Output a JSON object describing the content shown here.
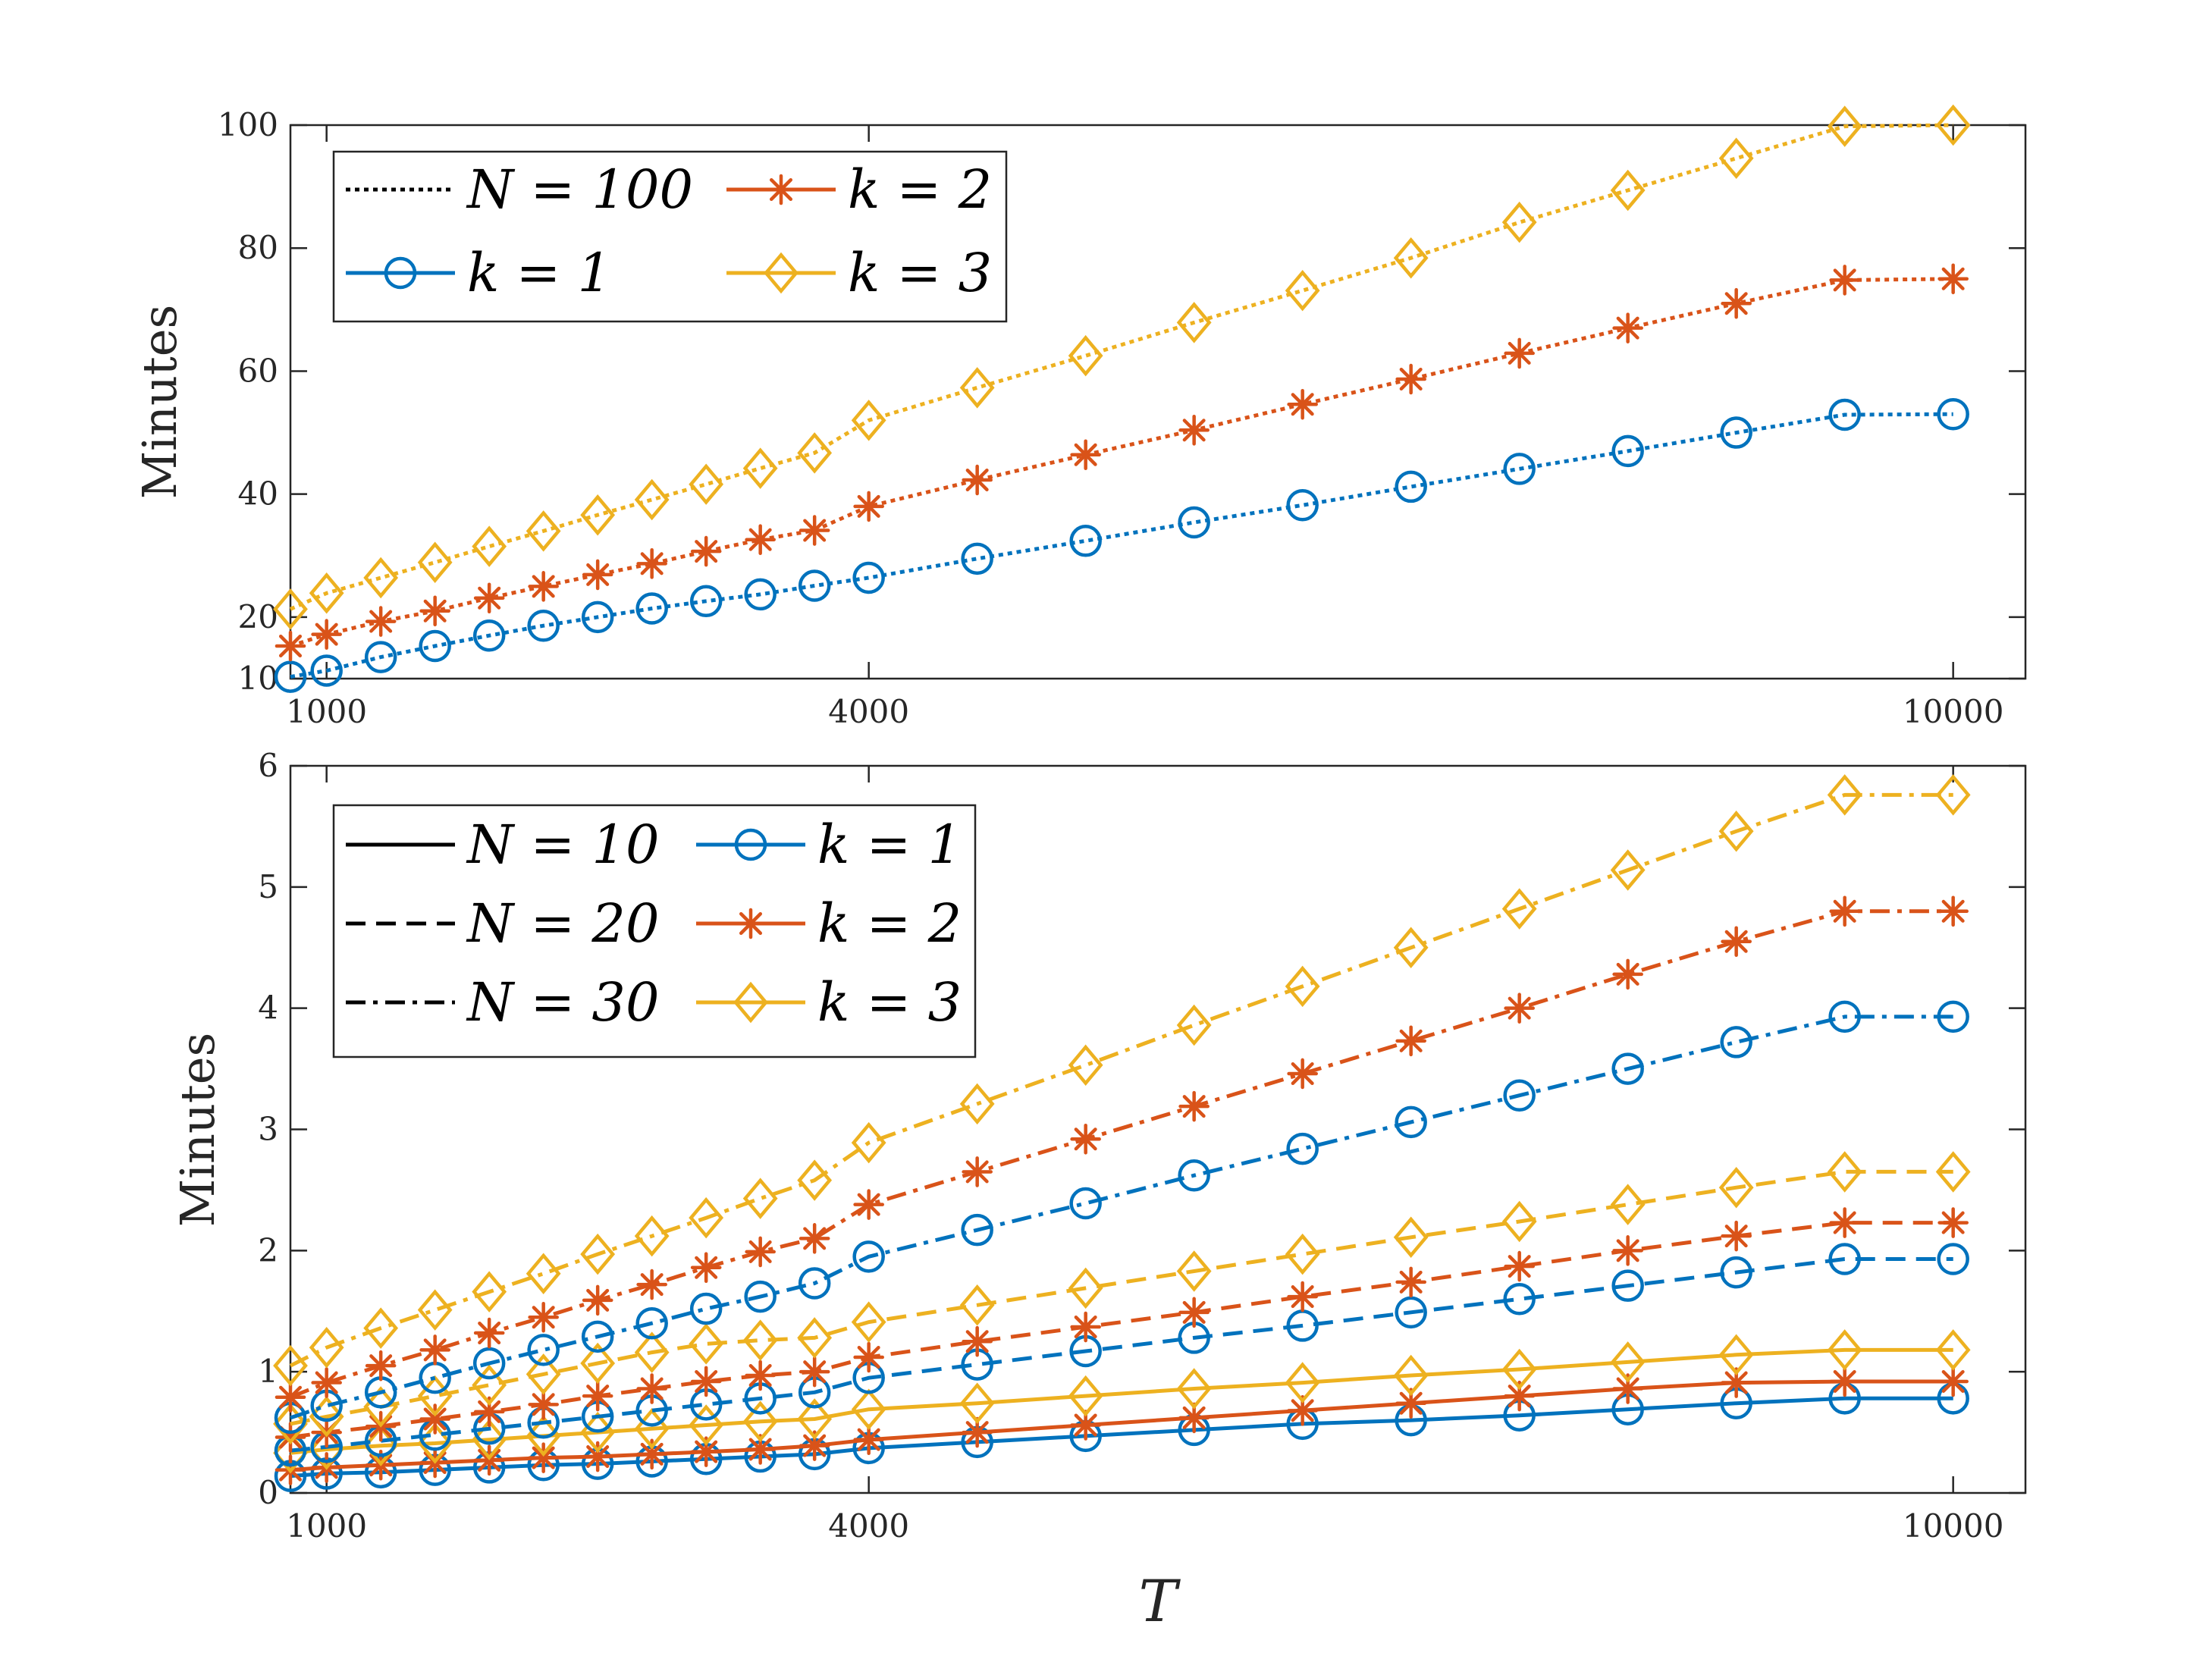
{
  "chart_data": [
    {
      "type": "line",
      "id": "top",
      "title": "",
      "xlabel": "",
      "ylabel": "Minutes",
      "xlim": [
        800,
        10400
      ],
      "ylim": [
        10,
        100
      ],
      "xticks": [
        1000,
        4000,
        10000
      ],
      "xtick_labels": [
        "1000",
        "4000",
        "10000"
      ],
      "yticks": [
        10,
        20,
        40,
        60,
        80,
        100
      ],
      "ytick_labels": [
        "10",
        "20",
        "40",
        "60",
        "80",
        "100"
      ],
      "grid": false,
      "legend_position": "top-left",
      "legend": [
        {
          "label": "N = 100",
          "kind": "style",
          "dash": "dotted",
          "color": "#000000"
        },
        {
          "label": "k = 2",
          "kind": "marker",
          "marker": "star",
          "color": "#D95319"
        },
        {
          "label": "k = 1",
          "kind": "marker",
          "marker": "circle",
          "color": "#0072BD"
        },
        {
          "label": "k = 3",
          "kind": "marker",
          "marker": "diamond",
          "color": "#EDB120"
        }
      ],
      "x": [
        800,
        1000,
        1300,
        1600,
        1900,
        2200,
        2500,
        2800,
        3100,
        3400,
        3700,
        4000,
        4600,
        5200,
        5800,
        6400,
        7000,
        7600,
        8200,
        8800,
        9400,
        10000
      ],
      "series": [
        {
          "name": "N=100, k=1",
          "N": 100,
          "k": 1,
          "color": "#0072BD",
          "marker": "circle",
          "dash": "dotted",
          "values": [
            10.3,
            11.3,
            13.5,
            15.3,
            17.0,
            18.6,
            20.0,
            21.4,
            22.6,
            23.7,
            25.1,
            26.4,
            29.5,
            32.4,
            35.4,
            38.2,
            41.2,
            44.1,
            47.0,
            50.0,
            52.9,
            53.0
          ]
        },
        {
          "name": "N=100, k=2",
          "N": 100,
          "k": 2,
          "color": "#D95319",
          "marker": "star",
          "dash": "dotted",
          "values": [
            15.3,
            17.2,
            19.3,
            21.0,
            23.1,
            25.0,
            26.9,
            28.7,
            30.7,
            32.6,
            34.1,
            38.0,
            42.3,
            46.4,
            50.4,
            54.6,
            58.7,
            62.9,
            67.0,
            71.0,
            74.8,
            75.0
          ]
        },
        {
          "name": "N=100, k=3",
          "N": 100,
          "k": 3,
          "color": "#EDB120",
          "marker": "diamond",
          "dash": "dotted",
          "values": [
            21.3,
            23.9,
            26.4,
            28.9,
            31.5,
            34.0,
            36.6,
            39.1,
            41.6,
            44.2,
            46.7,
            52.0,
            57.3,
            62.5,
            67.9,
            73.1,
            78.4,
            84.2,
            89.4,
            94.6,
            99.8,
            100.0
          ]
        }
      ]
    },
    {
      "type": "line",
      "id": "bottom",
      "title": "",
      "xlabel": "T",
      "ylabel": "Minutes",
      "xlim": [
        800,
        10400
      ],
      "ylim": [
        0,
        6
      ],
      "xticks": [
        1000,
        4000,
        10000
      ],
      "xtick_labels": [
        "1000",
        "4000",
        "10000"
      ],
      "yticks": [
        0,
        1,
        2,
        3,
        4,
        5,
        6
      ],
      "ytick_labels": [
        "0",
        "1",
        "2",
        "3",
        "4",
        "5",
        "6"
      ],
      "grid": false,
      "legend_position": "top-left",
      "legend": [
        {
          "label": "N = 10",
          "kind": "style",
          "dash": "solid",
          "color": "#000000"
        },
        {
          "label": "k = 1",
          "kind": "marker",
          "marker": "circle",
          "color": "#0072BD"
        },
        {
          "label": "N = 20",
          "kind": "style",
          "dash": "dashed",
          "color": "#000000"
        },
        {
          "label": "k = 2",
          "kind": "marker",
          "marker": "star",
          "color": "#D95319"
        },
        {
          "label": "N = 30",
          "kind": "style",
          "dash": "dashdot",
          "color": "#000000"
        },
        {
          "label": "k = 3",
          "kind": "marker",
          "marker": "diamond",
          "color": "#EDB120"
        }
      ],
      "x": [
        800,
        1000,
        1300,
        1600,
        1900,
        2200,
        2500,
        2800,
        3100,
        3400,
        3700,
        4000,
        4600,
        5200,
        5800,
        6400,
        7000,
        7600,
        8200,
        8800,
        9400,
        10000
      ],
      "series": [
        {
          "name": "N=10, k=1",
          "N": 10,
          "k": 1,
          "color": "#0072BD",
          "marker": "circle",
          "dash": "solid",
          "values": [
            0.14,
            0.16,
            0.17,
            0.19,
            0.21,
            0.23,
            0.24,
            0.26,
            0.28,
            0.3,
            0.32,
            0.37,
            0.42,
            0.47,
            0.52,
            0.57,
            0.6,
            0.64,
            0.69,
            0.74,
            0.78,
            0.78
          ]
        },
        {
          "name": "N=10, k=2",
          "N": 10,
          "k": 2,
          "color": "#D95319",
          "marker": "star",
          "dash": "solid",
          "values": [
            0.19,
            0.21,
            0.23,
            0.25,
            0.27,
            0.29,
            0.3,
            0.32,
            0.34,
            0.36,
            0.39,
            0.44,
            0.5,
            0.56,
            0.62,
            0.68,
            0.74,
            0.8,
            0.86,
            0.91,
            0.92,
            0.92
          ]
        },
        {
          "name": "N=10, k=3",
          "N": 10,
          "k": 3,
          "color": "#EDB120",
          "marker": "diamond",
          "dash": "solid",
          "values": [
            0.33,
            0.36,
            0.39,
            0.41,
            0.44,
            0.47,
            0.5,
            0.53,
            0.56,
            0.59,
            0.61,
            0.69,
            0.74,
            0.8,
            0.86,
            0.91,
            0.97,
            1.02,
            1.08,
            1.14,
            1.18,
            1.18
          ]
        },
        {
          "name": "N=20, k=1",
          "N": 20,
          "k": 1,
          "color": "#0072BD",
          "marker": "circle",
          "dash": "dashed",
          "values": [
            0.35,
            0.38,
            0.43,
            0.48,
            0.53,
            0.58,
            0.63,
            0.68,
            0.73,
            0.78,
            0.83,
            0.95,
            1.06,
            1.17,
            1.28,
            1.38,
            1.49,
            1.6,
            1.71,
            1.82,
            1.93,
            1.93
          ]
        },
        {
          "name": "N=20, k=2",
          "N": 20,
          "k": 2,
          "color": "#D95319",
          "marker": "star",
          "dash": "dashed",
          "values": [
            0.46,
            0.5,
            0.55,
            0.61,
            0.67,
            0.73,
            0.8,
            0.86,
            0.92,
            0.97,
            1.0,
            1.12,
            1.25,
            1.37,
            1.49,
            1.62,
            1.74,
            1.87,
            2.0,
            2.12,
            2.23,
            2.23
          ]
        },
        {
          "name": "N=20, k=3",
          "N": 20,
          "k": 3,
          "color": "#EDB120",
          "marker": "diamond",
          "dash": "dashed",
          "values": [
            0.57,
            0.63,
            0.71,
            0.8,
            0.89,
            0.98,
            1.07,
            1.16,
            1.23,
            1.26,
            1.28,
            1.41,
            1.55,
            1.69,
            1.83,
            1.97,
            2.11,
            2.24,
            2.38,
            2.52,
            2.65,
            2.65
          ]
        },
        {
          "name": "N=30, k=1",
          "N": 30,
          "k": 1,
          "color": "#0072BD",
          "marker": "circle",
          "dash": "dashdot",
          "values": [
            0.62,
            0.72,
            0.83,
            0.95,
            1.07,
            1.18,
            1.29,
            1.4,
            1.52,
            1.62,
            1.73,
            1.95,
            2.17,
            2.39,
            2.62,
            2.84,
            3.06,
            3.28,
            3.5,
            3.72,
            3.93,
            3.93
          ]
        },
        {
          "name": "N=30, k=2",
          "N": 30,
          "k": 2,
          "color": "#D95319",
          "marker": "star",
          "dash": "dashdot",
          "values": [
            0.79,
            0.91,
            1.05,
            1.18,
            1.32,
            1.45,
            1.59,
            1.72,
            1.86,
            1.99,
            2.1,
            2.38,
            2.65,
            2.92,
            3.19,
            3.46,
            3.73,
            4.0,
            4.28,
            4.55,
            4.8,
            4.8
          ]
        },
        {
          "name": "N=30, k=3",
          "N": 30,
          "k": 3,
          "color": "#EDB120",
          "marker": "diamond",
          "dash": "dashdot",
          "values": [
            1.05,
            1.2,
            1.36,
            1.51,
            1.66,
            1.81,
            1.97,
            2.12,
            2.27,
            2.43,
            2.58,
            2.89,
            3.21,
            3.53,
            3.86,
            4.18,
            4.5,
            4.82,
            5.14,
            5.46,
            5.76,
            5.76
          ]
        }
      ]
    }
  ]
}
